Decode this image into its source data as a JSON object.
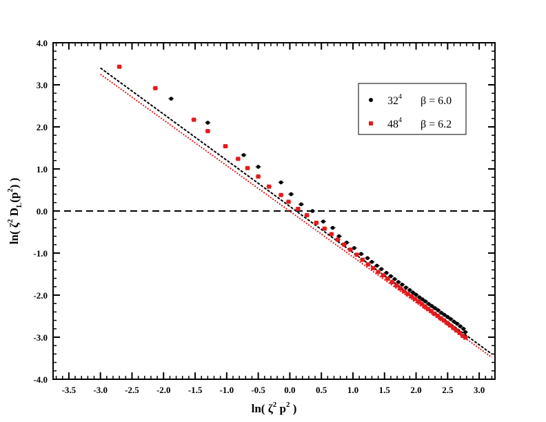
{
  "chart_data": {
    "type": "scatter",
    "title": "",
    "xlabel": "ln( ζ² p² )",
    "ylabel": "ln( ζ² D_L(p²) )",
    "xlabel_parts": {
      "pre": "ln(",
      "zeta": " ζ",
      "sup": "2",
      "mid": " p",
      "sup2": "2",
      "post": " )"
    },
    "ylabel_parts": {
      "pre": "ln(",
      "zeta": " ζ",
      "sup": "2",
      "D": " D",
      "sub": "L",
      "arg": "(p",
      "sup2": "2",
      "post": ") )"
    },
    "xlim": [
      -3.75,
      3.25
    ],
    "ylim": [
      -4.0,
      4.0
    ],
    "x_ticks": [
      -3.5,
      -3.0,
      -2.5,
      -2.0,
      -1.5,
      -1.0,
      -0.5,
      0.0,
      0.5,
      1.0,
      1.5,
      2.0,
      2.5,
      3.0
    ],
    "x_tick_labels": [
      "-3.5",
      "-3.0",
      "-2.5",
      "-2.0",
      "-1.5",
      "-1.0",
      "-0.5",
      "0.0",
      "0.5",
      "1.0",
      "1.5",
      "2.0",
      "2.5",
      "3.0"
    ],
    "y_ticks": [
      -4.0,
      -3.0,
      -2.0,
      -1.0,
      0.0,
      1.0,
      2.0,
      3.0,
      4.0
    ],
    "y_tick_labels": [
      "-4.0",
      "-3.0",
      "-2.0",
      "-1.0",
      "0.0",
      "1.0",
      "2.0",
      "3.0",
      "4.0"
    ],
    "grid": false,
    "legend_position": "top-right",
    "reference_line": {
      "y": 0.0,
      "style": "dashed",
      "color": "#000000"
    },
    "series": [
      {
        "name": "32⁴ β = 6.0",
        "legend_parts": {
          "base": "32",
          "sup": "4",
          "beta": "β = 6.0"
        },
        "color": "#000000",
        "marker": "circle",
        "points": [
          [
            -1.88,
            2.67
          ],
          [
            -1.3,
            2.1
          ],
          [
            -0.73,
            1.33
          ],
          [
            -0.5,
            1.05
          ],
          [
            -0.14,
            0.68
          ],
          [
            0.02,
            0.4
          ],
          [
            0.18,
            0.16
          ],
          [
            0.36,
            0.0
          ],
          [
            0.53,
            -0.25
          ],
          [
            0.68,
            -0.4
          ],
          [
            0.78,
            -0.6
          ],
          [
            0.9,
            -0.75
          ],
          [
            1.02,
            -0.88
          ],
          [
            1.13,
            -1.02
          ],
          [
            1.23,
            -1.12
          ],
          [
            1.3,
            -1.21
          ],
          [
            1.38,
            -1.3
          ],
          [
            1.45,
            -1.38
          ],
          [
            1.53,
            -1.47
          ],
          [
            1.6,
            -1.55
          ],
          [
            1.66,
            -1.62
          ],
          [
            1.72,
            -1.69
          ],
          [
            1.78,
            -1.75
          ],
          [
            1.84,
            -1.82
          ],
          [
            1.9,
            -1.88
          ],
          [
            1.95,
            -1.94
          ],
          [
            2.0,
            -1.99
          ],
          [
            2.05,
            -2.05
          ],
          [
            2.1,
            -2.1
          ],
          [
            2.15,
            -2.15
          ],
          [
            2.2,
            -2.21
          ],
          [
            2.25,
            -2.26
          ],
          [
            2.3,
            -2.31
          ],
          [
            2.35,
            -2.36
          ],
          [
            2.4,
            -2.42
          ],
          [
            2.45,
            -2.47
          ],
          [
            2.5,
            -2.52
          ],
          [
            2.55,
            -2.57
          ],
          [
            2.6,
            -2.63
          ],
          [
            2.65,
            -2.68
          ],
          [
            2.7,
            -2.74
          ],
          [
            2.75,
            -2.8
          ],
          [
            2.78,
            -2.88
          ]
        ]
      },
      {
        "name": "48⁴ β = 6.2",
        "legend_parts": {
          "base": "48",
          "sup": "4",
          "beta": "β = 6.2"
        },
        "color": "#e31a1c",
        "marker": "square",
        "points": [
          [
            -2.7,
            3.43
          ],
          [
            -2.13,
            2.92
          ],
          [
            -1.52,
            2.17
          ],
          [
            -1.3,
            1.9
          ],
          [
            -1.02,
            1.54
          ],
          [
            -0.82,
            1.24
          ],
          [
            -0.67,
            1.02
          ],
          [
            -0.5,
            0.82
          ],
          [
            -0.33,
            0.58
          ],
          [
            -0.14,
            0.38
          ],
          [
            -0.02,
            0.22
          ],
          [
            0.13,
            0.05
          ],
          [
            0.27,
            -0.1
          ],
          [
            0.42,
            -0.28
          ],
          [
            0.55,
            -0.42
          ],
          [
            0.66,
            -0.55
          ],
          [
            0.76,
            -0.68
          ],
          [
            0.86,
            -0.8
          ],
          [
            0.96,
            -0.92
          ],
          [
            1.06,
            -1.04
          ],
          [
            1.15,
            -1.16
          ],
          [
            1.24,
            -1.27
          ],
          [
            1.32,
            -1.36
          ],
          [
            1.4,
            -1.45
          ],
          [
            1.48,
            -1.53
          ],
          [
            1.55,
            -1.61
          ],
          [
            1.62,
            -1.69
          ],
          [
            1.69,
            -1.77
          ],
          [
            1.75,
            -1.84
          ],
          [
            1.81,
            -1.91
          ],
          [
            1.87,
            -1.97
          ],
          [
            1.93,
            -2.03
          ],
          [
            1.98,
            -2.09
          ],
          [
            2.04,
            -2.15
          ],
          [
            2.09,
            -2.21
          ],
          [
            2.14,
            -2.27
          ],
          [
            2.19,
            -2.33
          ],
          [
            2.24,
            -2.38
          ],
          [
            2.29,
            -2.44
          ],
          [
            2.34,
            -2.49
          ],
          [
            2.39,
            -2.55
          ],
          [
            2.44,
            -2.6
          ],
          [
            2.49,
            -2.66
          ],
          [
            2.54,
            -2.72
          ],
          [
            2.59,
            -2.78
          ],
          [
            2.64,
            -2.84
          ],
          [
            2.69,
            -2.9
          ],
          [
            2.74,
            -2.97
          ],
          [
            2.78,
            -3.01
          ]
        ]
      }
    ],
    "fit_lines": [
      {
        "color": "#000000",
        "style": "dashed",
        "from": [
          -3.0,
          3.4
        ],
        "to": [
          3.2,
          -3.4
        ]
      },
      {
        "color": "#e31a1c",
        "style": "dotted",
        "from": [
          -3.0,
          3.25
        ],
        "to": [
          3.2,
          -3.48
        ]
      }
    ]
  }
}
